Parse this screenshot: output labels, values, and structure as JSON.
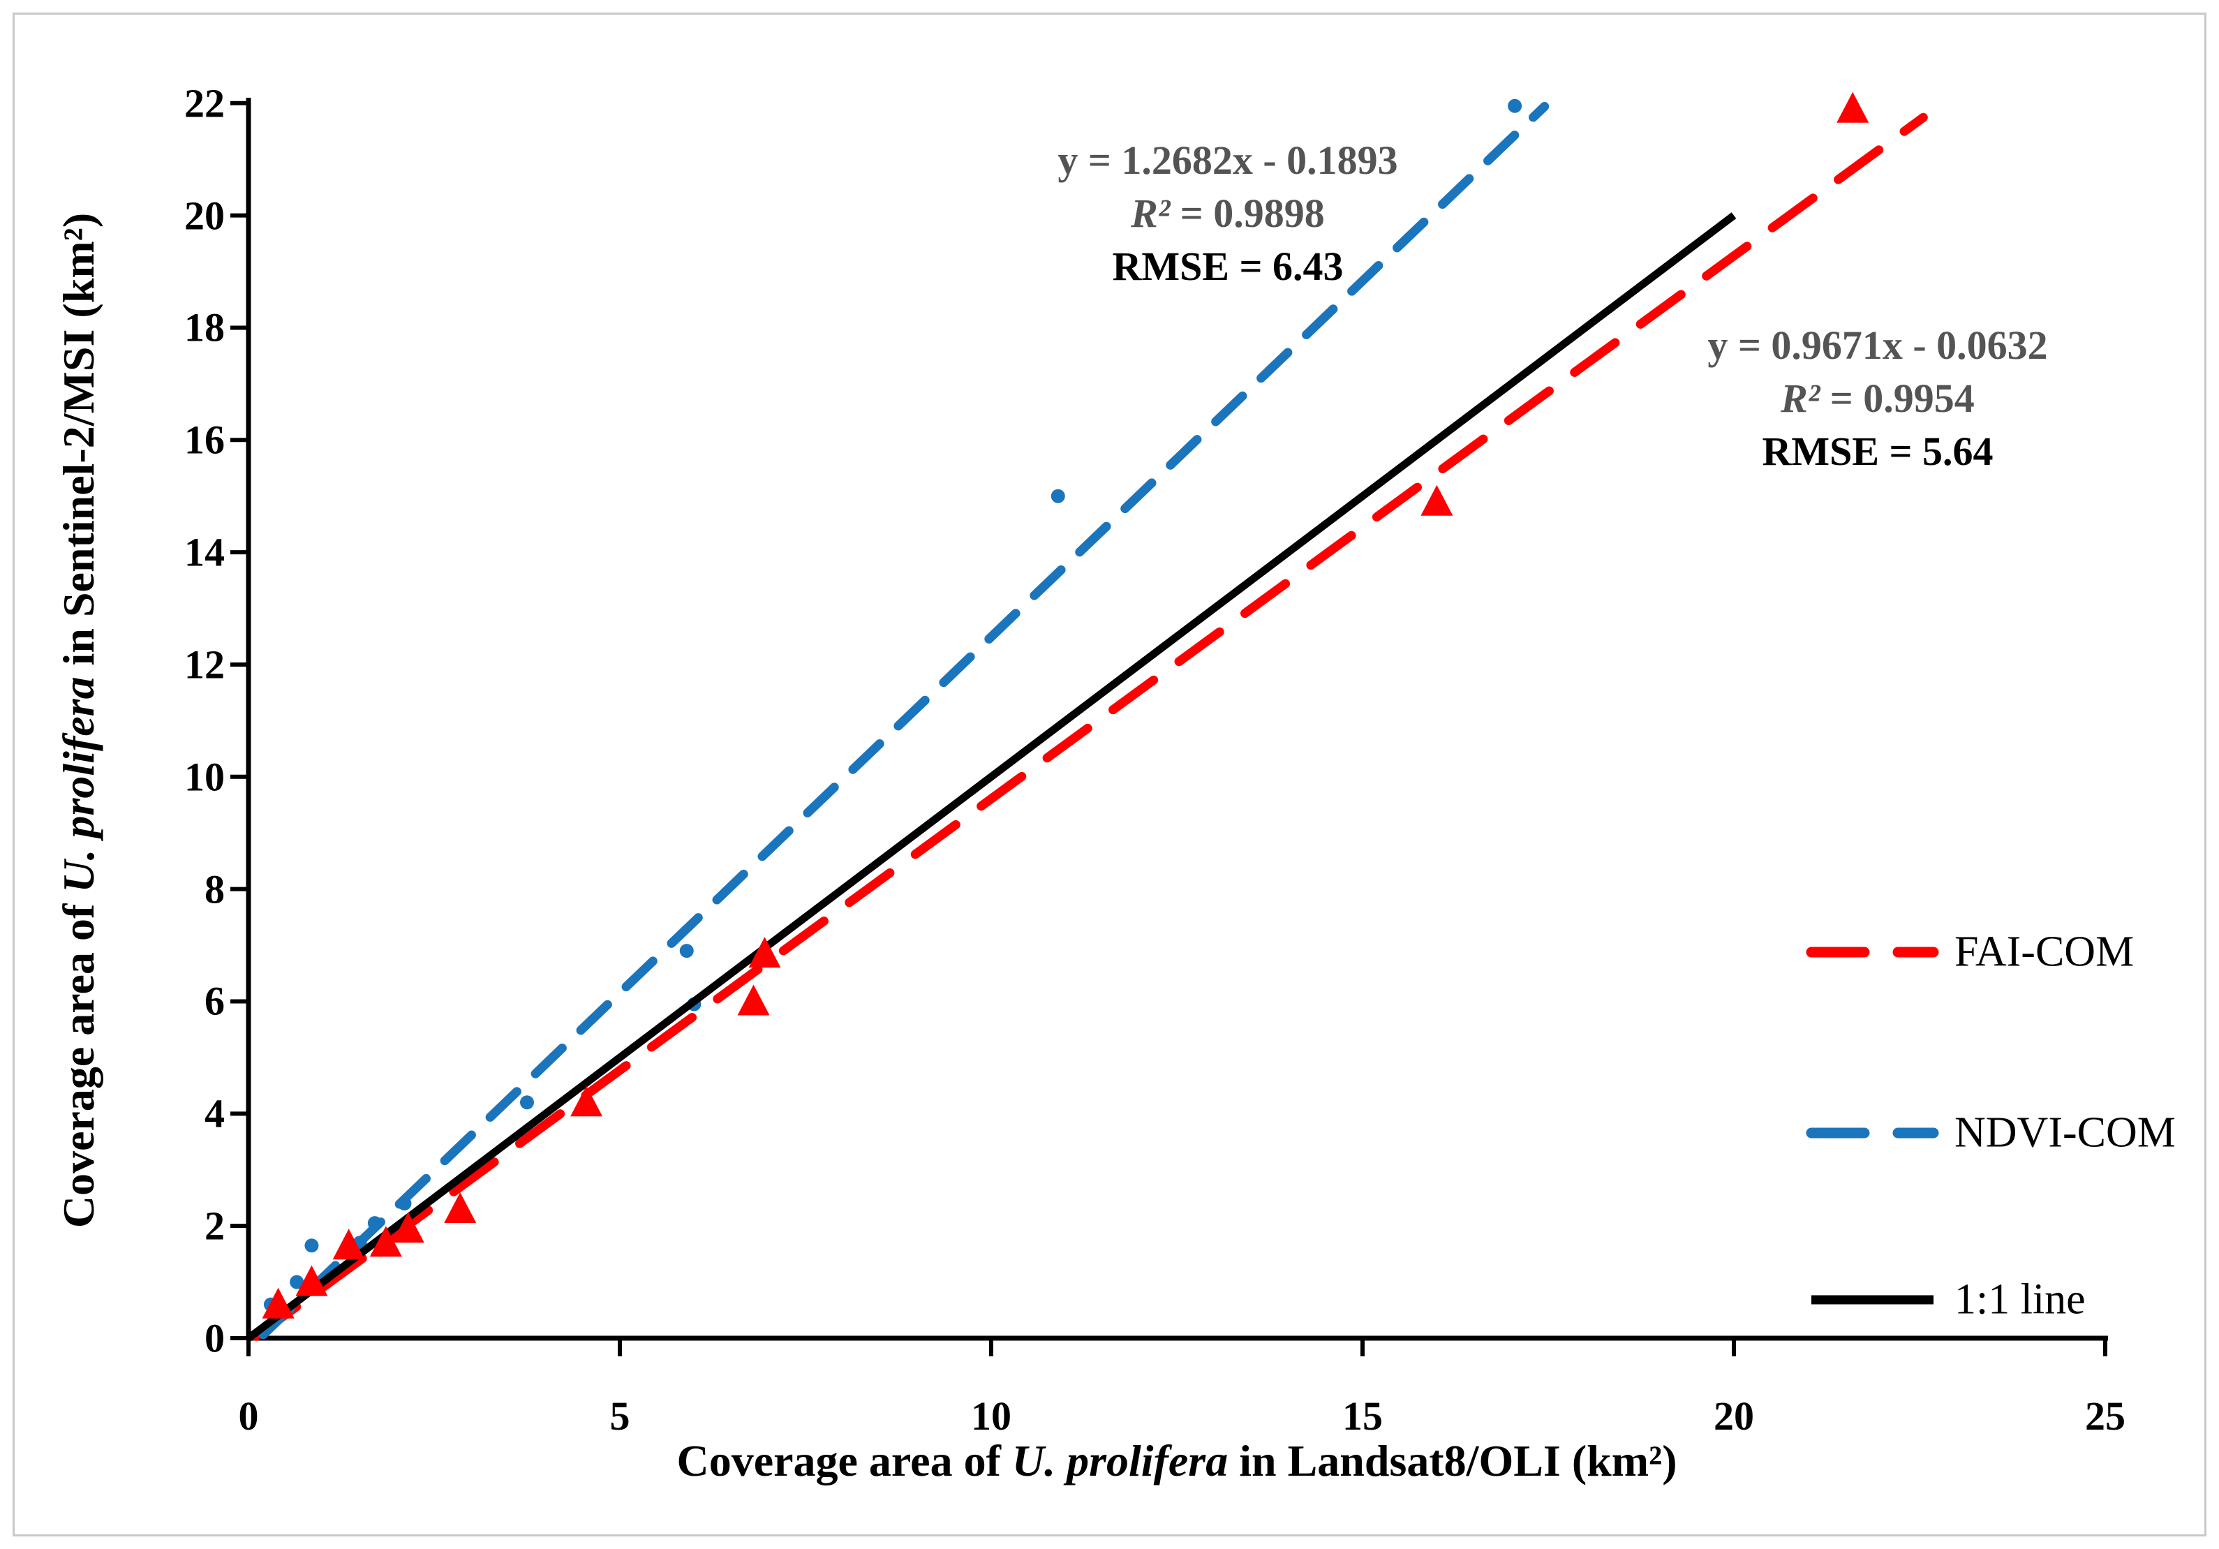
{
  "chart_data": {
    "type": "scatter",
    "title": "",
    "xlabel": {
      "prefix": "Coverage area of ",
      "italic": "U. prolifera",
      "suffix": " in Landsat8/OLI (km²)"
    },
    "ylabel": {
      "prefix": "Coverage area of ",
      "italic": "U. prolifera",
      "suffix": " in Sentinel-2/MSI (km²)"
    },
    "xlim": [
      0,
      25
    ],
    "ylim": [
      0,
      22
    ],
    "x_ticks": [
      0,
      5,
      10,
      15,
      20,
      25
    ],
    "y_ticks": [
      0,
      2,
      4,
      6,
      8,
      10,
      12,
      14,
      16,
      18,
      20,
      22
    ],
    "grid": false,
    "axis_color": "#000000",
    "frame_color": "#c9c9c9",
    "series": [
      {
        "name": "NDVI-COM",
        "marker": "circle",
        "color": "#1B75BC",
        "points": [
          [
            0.3,
            0.6
          ],
          [
            0.65,
            1.0
          ],
          [
            0.85,
            1.65
          ],
          [
            1.5,
            1.7
          ],
          [
            1.7,
            2.05
          ],
          [
            2.1,
            2.4
          ],
          [
            3.75,
            4.2
          ],
          [
            5.9,
            6.9
          ],
          [
            6.0,
            5.95
          ],
          [
            10.9,
            15.0
          ],
          [
            17.05,
            21.95
          ]
        ],
        "trend": {
          "slope": 1.2682,
          "intercept": -0.1893,
          "x_range": [
            0.2,
            17.45
          ],
          "dash": [
            53,
            37
          ]
        }
      },
      {
        "name": "FAI-COM",
        "marker": "triangle",
        "color": "#FF0000",
        "points": [
          [
            0.4,
            0.6
          ],
          [
            0.85,
            1.0
          ],
          [
            1.35,
            1.65
          ],
          [
            1.85,
            1.7
          ],
          [
            2.15,
            1.95
          ],
          [
            2.85,
            2.3
          ],
          [
            4.55,
            4.2
          ],
          [
            6.8,
            6.0
          ],
          [
            6.95,
            6.85
          ],
          [
            16.0,
            14.9
          ],
          [
            21.6,
            21.9
          ]
        ],
        "trend": {
          "slope": 0.9671,
          "intercept": -0.0632,
          "x_range": [
            0.1,
            22.55
          ],
          "dash": [
            72,
            45
          ]
        }
      },
      {
        "name": "1:1 line",
        "marker": "none",
        "color": "#000000",
        "trend": {
          "slope": 1,
          "intercept": 0,
          "x_range": [
            0,
            20
          ],
          "dash": null
        }
      }
    ],
    "annotations": [
      {
        "equation": "y = 1.2682x - 0.1893",
        "r2_sym": "R²",
        "r2_val": " = 0.9898",
        "rmse": "RMSE = 6.43"
      },
      {
        "equation": "y = 0.9671x - 0.0632",
        "r2_sym": "R²",
        "r2_val": " = 0.9954",
        "rmse": "RMSE = 5.64"
      }
    ],
    "annotation_style": {
      "equation_color": "#545454",
      "rmse_color": "#000000"
    },
    "legend": [
      {
        "label": "FAI-COM",
        "style": "dashed",
        "color": "#FF0000"
      },
      {
        "label": "NDVI-COM",
        "style": "dashed",
        "color": "#1B75BC"
      },
      {
        "label": "1:1 line",
        "style": "solid",
        "color": "#000000"
      }
    ],
    "legend_position": "right"
  }
}
